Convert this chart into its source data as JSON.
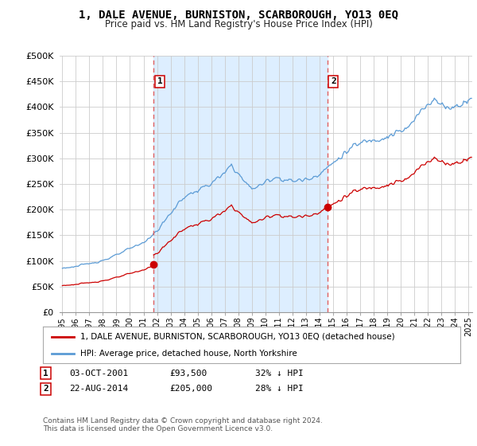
{
  "title": "1, DALE AVENUE, BURNISTON, SCARBOROUGH, YO13 0EQ",
  "subtitle": "Price paid vs. HM Land Registry's House Price Index (HPI)",
  "legend_line1": "1, DALE AVENUE, BURNISTON, SCARBOROUGH, YO13 0EQ (detached house)",
  "legend_line2": "HPI: Average price, detached house, North Yorkshire",
  "annotation1_label": "1",
  "annotation1_date": "03-OCT-2001",
  "annotation1_price": "£93,500",
  "annotation1_hpi": "32% ↓ HPI",
  "annotation2_label": "2",
  "annotation2_date": "22-AUG-2014",
  "annotation2_price": "£205,000",
  "annotation2_hpi": "28% ↓ HPI",
  "footer": "Contains HM Land Registry data © Crown copyright and database right 2024.\nThis data is licensed under the Open Government Licence v3.0.",
  "line_color_red": "#cc0000",
  "line_color_blue": "#5b9bd5",
  "vline_color": "#e06060",
  "fill_color": "#ddeeff",
  "marker_color_red": "#cc0000",
  "background_color": "#ffffff",
  "grid_color": "#cccccc",
  "ylim": [
    0,
    500000
  ],
  "yticks": [
    0,
    50000,
    100000,
    150000,
    200000,
    250000,
    300000,
    350000,
    400000,
    450000,
    500000
  ],
  "ytick_labels": [
    "£0",
    "£50K",
    "£100K",
    "£150K",
    "£200K",
    "£250K",
    "£300K",
    "£350K",
    "£400K",
    "£450K",
    "£500K"
  ],
  "sale1_x": 2001.75,
  "sale1_y": 93500,
  "sale2_x": 2014.583,
  "sale2_y": 205000,
  "xlim_left": 1994.8,
  "xlim_right": 2025.3,
  "xtick_years": [
    1995,
    1996,
    1997,
    1998,
    1999,
    2000,
    2001,
    2002,
    2003,
    2004,
    2005,
    2006,
    2007,
    2008,
    2009,
    2010,
    2011,
    2012,
    2013,
    2014,
    2015,
    2016,
    2017,
    2018,
    2019,
    2020,
    2021,
    2022,
    2023,
    2024,
    2025
  ]
}
